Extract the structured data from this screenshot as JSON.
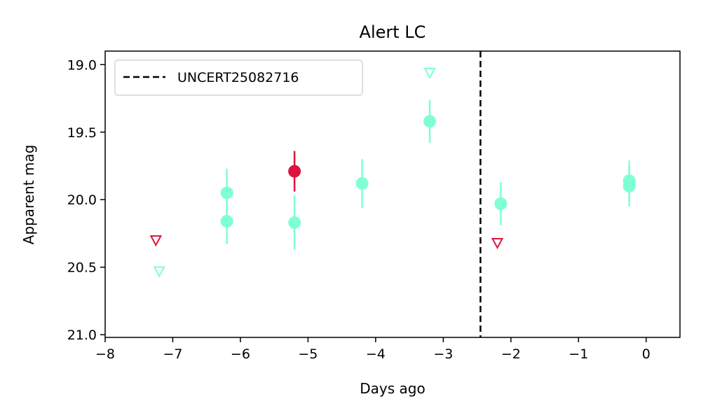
{
  "chart_data": {
    "type": "scatter",
    "title": "Alert LC",
    "xlabel": "Days ago",
    "ylabel": "Apparent mag",
    "xlim": [
      -8,
      0.5
    ],
    "ylim": [
      21.02,
      18.9
    ],
    "y_inverted": true,
    "grid": false,
    "legend_position": "top-left",
    "x_ticks": [
      -8,
      -7,
      -6,
      -5,
      -4,
      -3,
      -2,
      -1,
      0
    ],
    "x_tick_labels": [
      "−8",
      "−7",
      "−6",
      "−5",
      "−4",
      "−3",
      "−2",
      "−1",
      "0"
    ],
    "y_ticks": [
      19.0,
      19.5,
      20.0,
      20.5,
      21.0
    ],
    "y_tick_labels": [
      "19.0",
      "19.5",
      "20.0",
      "20.5",
      "21.0"
    ],
    "colors": {
      "teal": "#7fffd4",
      "red": "#dc143c",
      "line": "#000000"
    },
    "vline": {
      "x": -2.45,
      "style": "dashed",
      "label": "UNCERT25082716"
    },
    "detections": [
      {
        "x": -6.2,
        "y": 19.95,
        "err": 0.18,
        "color": "teal"
      },
      {
        "x": -6.2,
        "y": 20.16,
        "err": 0.17,
        "color": "teal"
      },
      {
        "x": -5.2,
        "y": 19.79,
        "err": 0.15,
        "color": "red"
      },
      {
        "x": -5.2,
        "y": 20.17,
        "err": 0.2,
        "color": "teal"
      },
      {
        "x": -4.2,
        "y": 19.88,
        "err": 0.18,
        "color": "teal"
      },
      {
        "x": -3.2,
        "y": 19.42,
        "err": 0.16,
        "color": "teal"
      },
      {
        "x": -2.15,
        "y": 20.03,
        "err": 0.16,
        "color": "teal"
      },
      {
        "x": -0.25,
        "y": 19.86,
        "err": 0.15,
        "color": "teal"
      },
      {
        "x": -0.25,
        "y": 19.9,
        "err": 0.15,
        "color": "teal"
      }
    ],
    "upper_limits": [
      {
        "x": -7.25,
        "y": 20.3,
        "color": "red"
      },
      {
        "x": -7.2,
        "y": 20.53,
        "color": "teal"
      },
      {
        "x": -3.2,
        "y": 19.06,
        "color": "teal"
      },
      {
        "x": -2.2,
        "y": 20.32,
        "color": "red"
      }
    ]
  }
}
